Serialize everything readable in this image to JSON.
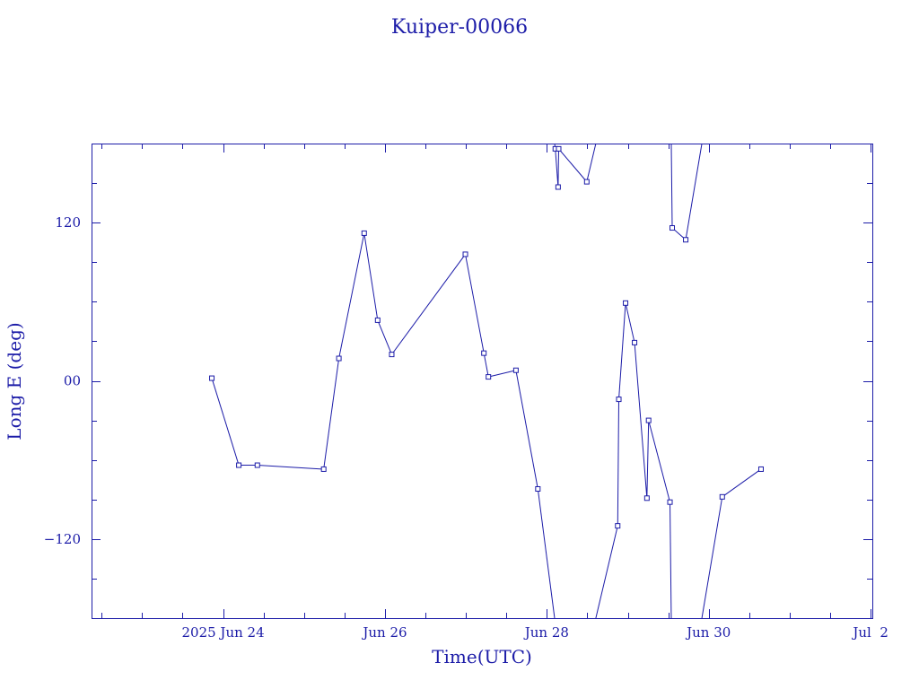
{
  "chart_data": {
    "type": "line",
    "title": "Kuiper-00066",
    "xlabel": "Time(UTC)",
    "ylabel": "Long E (deg)",
    "x_ticks": [
      {
        "x": "2025-06-24T00:00:00Z",
        "label": "2025 Jun 24"
      },
      {
        "x": "2025-06-26T00:00:00Z",
        "label": "Jun 26"
      },
      {
        "x": "2025-06-28T00:00:00Z",
        "label": "Jun 28"
      },
      {
        "x": "2025-06-30T00:00:00Z",
        "label": "Jun 30"
      },
      {
        "x": "2025-07-02T00:00:00Z",
        "label": "Jul  2"
      }
    ],
    "y_ticks": [
      {
        "y": 120,
        "label": "120"
      },
      {
        "y": 0,
        "label": "00"
      },
      {
        "y": -120,
        "label": "−120"
      }
    ],
    "xlim": [
      "2025-06-22T09:00:00Z",
      "2025-07-02T00:30:00Z"
    ],
    "ylim": [
      -180,
      180
    ],
    "y_wraps": true,
    "grid": false,
    "color": "#1c1ca8",
    "series": [
      {
        "points": [
          {
            "x": "2025-06-23T20:40:00Z",
            "y": 2
          },
          {
            "x": "2025-06-24T04:40:00Z",
            "y": -64
          },
          {
            "x": "2025-06-24T10:10:00Z",
            "y": -64
          },
          {
            "x": "2025-06-25T05:50:00Z",
            "y": -67
          },
          {
            "x": "2025-06-25T10:20:00Z",
            "y": 17
          },
          {
            "x": "2025-06-25T17:50:00Z",
            "y": 112
          },
          {
            "x": "2025-06-25T21:50:00Z",
            "y": 46
          },
          {
            "x": "2025-06-26T02:00:00Z",
            "y": 20
          },
          {
            "x": "2025-06-26T23:50:00Z",
            "y": 96
          },
          {
            "x": "2025-06-27T05:20:00Z",
            "y": 21
          },
          {
            "x": "2025-06-27T06:40:00Z",
            "y": 3
          },
          {
            "x": "2025-06-27T14:50:00Z",
            "y": 8
          },
          {
            "x": "2025-06-27T21:20:00Z",
            "y": -82
          },
          {
            "x": "2025-06-28T02:30:00Z",
            "y": 176
          },
          {
            "x": "2025-06-28T03:20:00Z",
            "y": 147
          },
          {
            "x": "2025-06-28T03:30:00Z",
            "y": 176
          },
          {
            "x": "2025-06-28T11:50:00Z",
            "y": 151
          },
          {
            "x": "2025-06-28T21:00:00Z",
            "y": -110
          },
          {
            "x": "2025-06-28T21:20:00Z",
            "y": -14
          },
          {
            "x": "2025-06-28T23:20:00Z",
            "y": 59
          },
          {
            "x": "2025-06-29T02:00:00Z",
            "y": 29
          },
          {
            "x": "2025-06-29T05:40:00Z",
            "y": -89
          },
          {
            "x": "2025-06-29T06:10:00Z",
            "y": -30
          },
          {
            "x": "2025-06-29T12:30:00Z",
            "y": -92
          },
          {
            "x": "2025-06-29T13:10:00Z",
            "y": 116
          },
          {
            "x": "2025-06-29T17:10:00Z",
            "y": 107
          },
          {
            "x": "2025-06-30T04:00:00Z",
            "y": -88
          },
          {
            "x": "2025-06-30T15:30:00Z",
            "y": -67
          }
        ]
      }
    ]
  }
}
